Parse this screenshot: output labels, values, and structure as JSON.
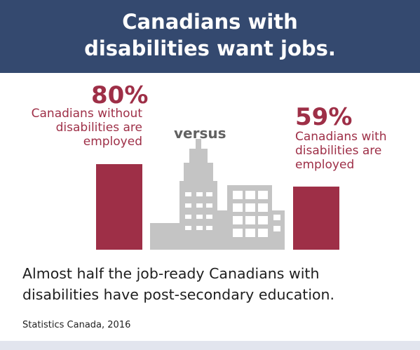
{
  "header": {
    "title_line1": "Canadians with",
    "title_line2": "disabilities want jobs."
  },
  "chart_data": {
    "type": "bar",
    "categories": [
      "Canadians without disabilities are employed",
      "Canadians with disabilities are employed"
    ],
    "values": [
      80,
      59
    ],
    "value_labels": [
      "80%",
      "59%"
    ],
    "ylim": [
      0,
      100
    ],
    "bar_color": "#9e2f47",
    "separator_text": "versus"
  },
  "labels": {
    "left_pct": "80%",
    "left_desc_1": "Canadians without",
    "left_desc_2": "disabilities are",
    "left_desc_3": "employed",
    "versus": "versus",
    "right_pct": "59%",
    "right_desc_1": "Canadians with",
    "right_desc_2": "disabilities are",
    "right_desc_3": "employed"
  },
  "caption": {
    "line1": "Almost half the job-ready Canadians with",
    "line2": "disabilities have post-secondary education."
  },
  "source": "Statistics Canada, 2016",
  "colors": {
    "header_bg": "#34496f",
    "accent": "#9e2f47",
    "building": "#c4c4c4"
  }
}
